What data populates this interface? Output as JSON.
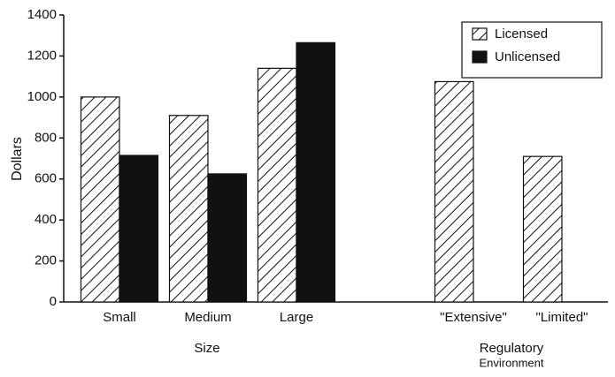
{
  "chart_data": {
    "type": "bar",
    "ylabel": "Dollars",
    "categories": [
      "Small",
      "Medium",
      "Large",
      null,
      "\"Extensive\"",
      "\"Limited\""
    ],
    "group_labels": [
      [
        "Size"
      ],
      [
        "Regulatory",
        "Environment"
      ]
    ],
    "series": [
      {
        "name": "Licensed",
        "color": "#111111",
        "pattern": "hatch",
        "values": [
          1000,
          910,
          1140,
          null,
          1075,
          710
        ]
      },
      {
        "name": "Unlicensed",
        "color": "#111111",
        "pattern": "solid",
        "values": [
          715,
          625,
          1265,
          null,
          null,
          null
        ]
      }
    ],
    "ylim": [
      0,
      1400
    ],
    "yticks": [
      0,
      200,
      400,
      600,
      800,
      1000,
      1200,
      1400
    ],
    "legend": "upper right"
  }
}
